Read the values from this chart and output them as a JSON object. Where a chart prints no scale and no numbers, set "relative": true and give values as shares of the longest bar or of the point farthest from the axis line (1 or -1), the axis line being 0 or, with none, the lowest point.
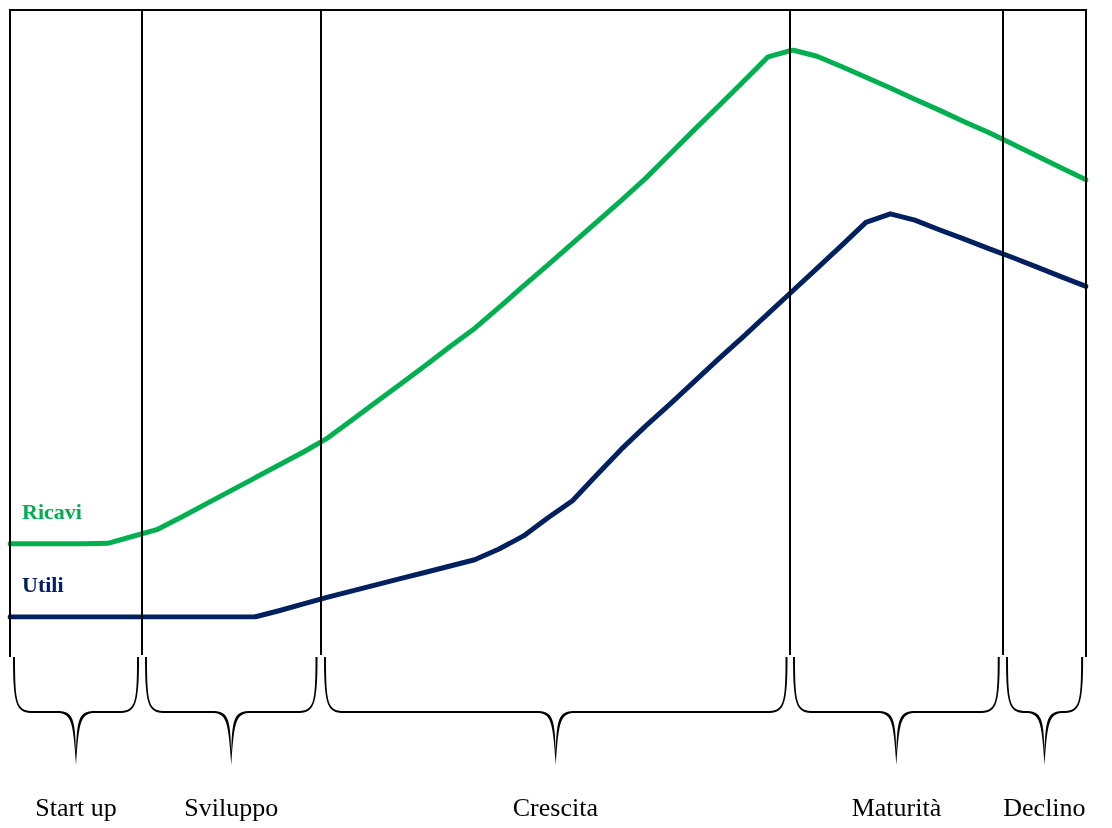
{
  "chart_data": {
    "type": "line",
    "relative": true,
    "tick_labels": false,
    "legend": false,
    "marker": "none",
    "line_style": "solid",
    "categories": [
      null,
      null,
      null,
      null,
      null,
      null,
      null,
      null,
      null,
      null,
      null,
      null,
      null,
      null,
      null,
      null,
      null,
      null,
      null,
      null,
      null,
      null,
      null,
      null,
      null,
      null,
      null,
      null,
      null,
      null,
      null,
      null,
      null,
      null,
      null,
      null,
      null,
      null,
      null,
      null,
      null,
      null,
      null,
      null,
      null
    ],
    "series": [
      {
        "name": "Ricavi",
        "color": "#00b050",
        "values": [
          0.129,
          0.129,
          0.129,
          0.129,
          0.13,
          0.142,
          0.154,
          0.176,
          0.199,
          0.222,
          0.245,
          0.268,
          0.291,
          0.316,
          0.348,
          0.38,
          0.412,
          0.444,
          0.477,
          0.509,
          0.546,
          0.584,
          0.621,
          0.659,
          0.697,
          0.735,
          0.774,
          0.817,
          0.86,
          0.902,
          0.945,
          0.988,
          1,
          0.989,
          0.971,
          0.952,
          0.933,
          0.913,
          0.894,
          0.874,
          0.855,
          0.834,
          0.813,
          0.792,
          0.771
        ]
      },
      {
        "name": "Utili",
        "color": "#002060",
        "values": [
          0,
          0,
          0,
          0,
          0,
          0,
          0,
          0,
          0,
          0,
          0,
          0.011,
          0.023,
          0.035,
          0.046,
          0.057,
          0.068,
          0.079,
          0.09,
          0.101,
          0.12,
          0.143,
          0.175,
          0.205,
          0.251,
          0.296,
          0.337,
          0.376,
          0.416,
          0.456,
          0.495,
          0.535,
          0.575,
          0.615,
          0.655,
          0.696,
          0.711,
          0.7,
          0.683,
          0.667,
          0.65,
          0.634,
          0.617,
          0.6,
          0.583
        ]
      }
    ],
    "annotations": [
      "Start up",
      "Sviluppo",
      "Crescita",
      "Maturità",
      "Declino"
    ]
  }
}
